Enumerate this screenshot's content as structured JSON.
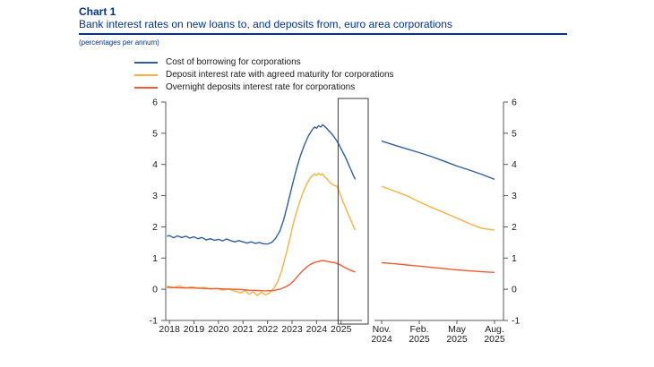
{
  "header": {
    "chart_label": "Chart 1",
    "title": "Bank interest rates on new loans to, and deposits from, euro area corporations",
    "subtitle": "(percentages per annum)"
  },
  "colors": {
    "accent_blue": "#003299",
    "axis": "#58585a",
    "highlight_box": "#3a3a3a",
    "text": "#1a1a1a"
  },
  "chart_data": {
    "type": "line",
    "unit": "percentages per annum",
    "ylim": [
      -1,
      6
    ],
    "yticks": [
      -1,
      0,
      1,
      2,
      3,
      4,
      5,
      6
    ],
    "grid": false,
    "legend_position": "top-left",
    "left_panel": {
      "xlim": [
        2017.85,
        2025.85
      ],
      "xticks": [
        2018,
        2019,
        2020,
        2021,
        2022,
        2023,
        2024,
        2025
      ],
      "highlight_box": {
        "x0": 2024.88,
        "x1": 2025.85
      }
    },
    "right_panel": {
      "n_points": 10,
      "xtick_labels": [
        {
          "i": 0,
          "l1": "Nov.",
          "l2": "2024"
        },
        {
          "i": 3,
          "l1": "Feb.",
          "l2": "2025"
        },
        {
          "i": 6,
          "l1": "May",
          "l2": "2025"
        },
        {
          "i": 9,
          "l1": "Aug.",
          "l2": "2025"
        }
      ]
    },
    "series": [
      {
        "id": "cost-of-borrowing",
        "name": "Cost of borrowing for corporations",
        "color": "#2e5fa3",
        "left": [
          [
            2017.9,
            1.7
          ],
          [
            2018.0,
            1.72
          ],
          [
            2018.17,
            1.65
          ],
          [
            2018.33,
            1.71
          ],
          [
            2018.5,
            1.66
          ],
          [
            2018.67,
            1.7
          ],
          [
            2018.83,
            1.64
          ],
          [
            2019.0,
            1.68
          ],
          [
            2019.17,
            1.62
          ],
          [
            2019.33,
            1.66
          ],
          [
            2019.5,
            1.58
          ],
          [
            2019.67,
            1.62
          ],
          [
            2019.83,
            1.57
          ],
          [
            2020.0,
            1.6
          ],
          [
            2020.17,
            1.55
          ],
          [
            2020.33,
            1.61
          ],
          [
            2020.5,
            1.56
          ],
          [
            2020.67,
            1.52
          ],
          [
            2020.83,
            1.56
          ],
          [
            2021.0,
            1.52
          ],
          [
            2021.17,
            1.48
          ],
          [
            2021.33,
            1.52
          ],
          [
            2021.5,
            1.47
          ],
          [
            2021.67,
            1.5
          ],
          [
            2021.83,
            1.46
          ],
          [
            2022.0,
            1.45
          ],
          [
            2022.17,
            1.5
          ],
          [
            2022.33,
            1.63
          ],
          [
            2022.5,
            1.86
          ],
          [
            2022.67,
            2.25
          ],
          [
            2022.83,
            2.75
          ],
          [
            2023.0,
            3.3
          ],
          [
            2023.17,
            3.82
          ],
          [
            2023.33,
            4.25
          ],
          [
            2023.5,
            4.62
          ],
          [
            2023.67,
            4.92
          ],
          [
            2023.83,
            5.12
          ],
          [
            2023.92,
            5.2
          ],
          [
            2024.0,
            5.16
          ],
          [
            2024.08,
            5.24
          ],
          [
            2024.17,
            5.2
          ],
          [
            2024.25,
            5.27
          ],
          [
            2024.33,
            5.22
          ],
          [
            2024.42,
            5.15
          ],
          [
            2024.5,
            5.08
          ],
          [
            2024.58,
            5.02
          ],
          [
            2024.67,
            4.93
          ],
          [
            2024.75,
            4.84
          ],
          [
            2024.83,
            4.75
          ],
          [
            2024.92,
            4.63
          ],
          [
            2025.0,
            4.5
          ],
          [
            2025.08,
            4.38
          ],
          [
            2025.17,
            4.24
          ],
          [
            2025.25,
            4.1
          ],
          [
            2025.33,
            3.95
          ],
          [
            2025.42,
            3.8
          ],
          [
            2025.5,
            3.65
          ],
          [
            2025.58,
            3.52
          ]
        ],
        "right": [
          4.75,
          4.62,
          4.5,
          4.38,
          4.25,
          4.1,
          3.95,
          3.82,
          3.68,
          3.52
        ]
      },
      {
        "id": "deposit-agreed-maturity",
        "name": "Deposit interest rate with agreed maturity for corporations",
        "color": "#fbb040",
        "left": [
          [
            2017.9,
            0.1
          ],
          [
            2018.17,
            0.06
          ],
          [
            2018.42,
            0.1
          ],
          [
            2018.67,
            0.04
          ],
          [
            2018.92,
            0.08
          ],
          [
            2019.17,
            0.03
          ],
          [
            2019.42,
            0.06
          ],
          [
            2019.67,
            0.0
          ],
          [
            2019.92,
            0.03
          ],
          [
            2020.17,
            -0.03
          ],
          [
            2020.42,
            0.01
          ],
          [
            2020.67,
            -0.06
          ],
          [
            2020.92,
            -0.12
          ],
          [
            2021.08,
            -0.04
          ],
          [
            2021.25,
            -0.16
          ],
          [
            2021.42,
            -0.08
          ],
          [
            2021.58,
            -0.2
          ],
          [
            2021.75,
            -0.1
          ],
          [
            2021.92,
            -0.18
          ],
          [
            2022.08,
            -0.12
          ],
          [
            2022.25,
            0.02
          ],
          [
            2022.42,
            0.25
          ],
          [
            2022.58,
            0.6
          ],
          [
            2022.75,
            1.1
          ],
          [
            2022.92,
            1.65
          ],
          [
            2023.08,
            2.2
          ],
          [
            2023.25,
            2.65
          ],
          [
            2023.42,
            3.05
          ],
          [
            2023.58,
            3.35
          ],
          [
            2023.75,
            3.58
          ],
          [
            2023.92,
            3.7
          ],
          [
            2024.0,
            3.64
          ],
          [
            2024.08,
            3.72
          ],
          [
            2024.17,
            3.66
          ],
          [
            2024.25,
            3.7
          ],
          [
            2024.33,
            3.6
          ],
          [
            2024.42,
            3.54
          ],
          [
            2024.5,
            3.46
          ],
          [
            2024.58,
            3.4
          ],
          [
            2024.67,
            3.35
          ],
          [
            2024.75,
            3.32
          ],
          [
            2024.83,
            3.3
          ],
          [
            2024.92,
            3.14
          ],
          [
            2025.0,
            2.98
          ],
          [
            2025.08,
            2.8
          ],
          [
            2025.17,
            2.64
          ],
          [
            2025.25,
            2.48
          ],
          [
            2025.33,
            2.33
          ],
          [
            2025.42,
            2.18
          ],
          [
            2025.5,
            2.02
          ],
          [
            2025.58,
            1.9
          ]
        ],
        "right": [
          3.3,
          3.15,
          3.0,
          2.8,
          2.62,
          2.45,
          2.28,
          2.1,
          1.95,
          1.9
        ]
      },
      {
        "id": "overnight-deposits",
        "name": "Overnight deposits interest rate for corporations",
        "color": "#ef5e33",
        "left": [
          [
            2017.9,
            0.06
          ],
          [
            2018.25,
            0.05
          ],
          [
            2018.58,
            0.04
          ],
          [
            2018.92,
            0.04
          ],
          [
            2019.25,
            0.03
          ],
          [
            2019.58,
            0.02
          ],
          [
            2019.92,
            0.02
          ],
          [
            2020.25,
            0.01
          ],
          [
            2020.58,
            0.0
          ],
          [
            2020.92,
            -0.01
          ],
          [
            2021.25,
            -0.03
          ],
          [
            2021.58,
            -0.04
          ],
          [
            2021.92,
            -0.05
          ],
          [
            2022.25,
            -0.04
          ],
          [
            2022.5,
            0.0
          ],
          [
            2022.75,
            0.08
          ],
          [
            2022.92,
            0.16
          ],
          [
            2023.08,
            0.28
          ],
          [
            2023.25,
            0.44
          ],
          [
            2023.42,
            0.58
          ],
          [
            2023.58,
            0.7
          ],
          [
            2023.75,
            0.8
          ],
          [
            2023.92,
            0.86
          ],
          [
            2024.08,
            0.89
          ],
          [
            2024.25,
            0.92
          ],
          [
            2024.42,
            0.9
          ],
          [
            2024.58,
            0.87
          ],
          [
            2024.75,
            0.85
          ],
          [
            2024.92,
            0.8
          ],
          [
            2025.08,
            0.73
          ],
          [
            2025.25,
            0.66
          ],
          [
            2025.42,
            0.6
          ],
          [
            2025.58,
            0.55
          ]
        ],
        "right": [
          0.85,
          0.82,
          0.78,
          0.74,
          0.7,
          0.66,
          0.62,
          0.59,
          0.56,
          0.54
        ]
      }
    ]
  }
}
